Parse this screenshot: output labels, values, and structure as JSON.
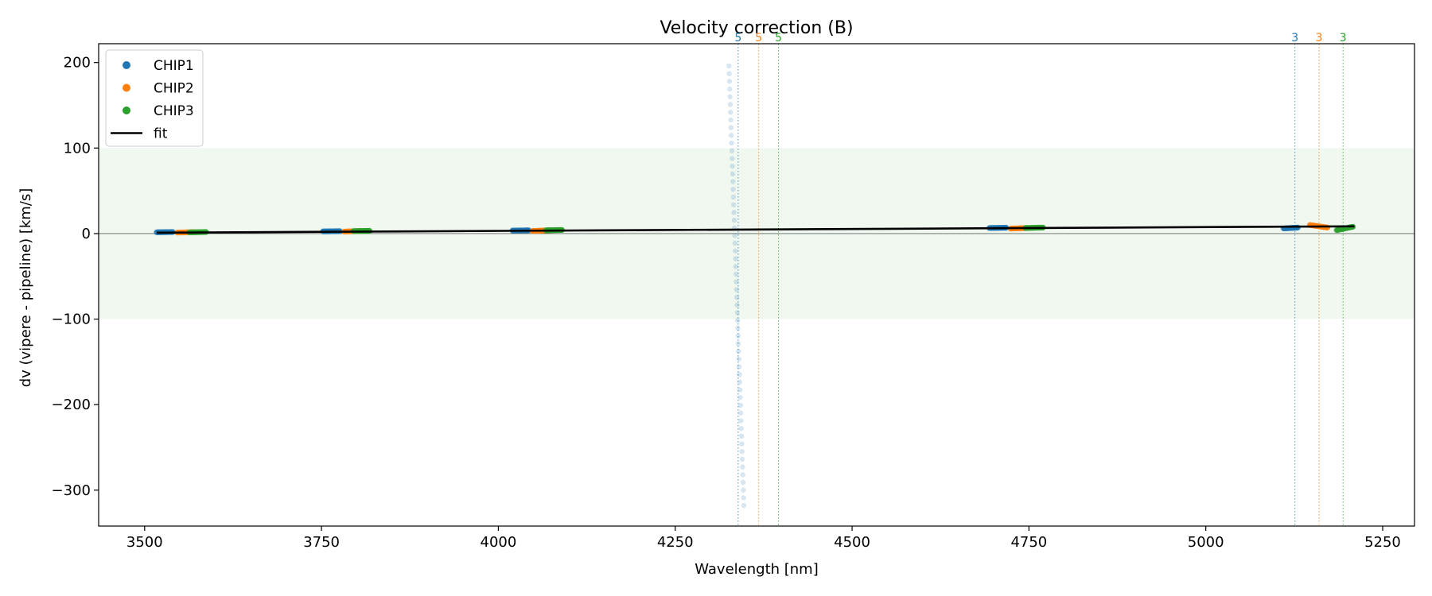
{
  "chart_data": {
    "type": "scatter",
    "title": "Velocity correction (B)",
    "xlabel": "Wavelength [nm]",
    "ylabel": "dv (vipere - pipeline) [km/s]",
    "xlim": [
      3435,
      5295
    ],
    "ylim": [
      -342,
      222
    ],
    "xticks": [
      3500,
      3750,
      4000,
      4250,
      4500,
      4750,
      5000,
      5250
    ],
    "yticks": [
      -300,
      -200,
      -100,
      0,
      100,
      200
    ],
    "tolerance_band": [
      -100,
      100
    ],
    "zero_line": 0,
    "legend": {
      "position": "top-left",
      "entries": [
        {
          "label": "CHIP1",
          "kind": "marker",
          "color": "#1f77b4"
        },
        {
          "label": "CHIP2",
          "kind": "marker",
          "color": "#ff7f0e"
        },
        {
          "label": "CHIP3",
          "kind": "marker",
          "color": "#2ca02c"
        },
        {
          "label": "fit",
          "kind": "line",
          "color": "#000000"
        }
      ]
    },
    "series": [
      {
        "name": "CHIP1",
        "color": "#1f77b4",
        "clusters": [
          {
            "x0": 3517,
            "x1": 3540,
            "y0": 1.5,
            "y1": 1.8
          },
          {
            "x0": 3752,
            "x1": 3776,
            "y0": 2.5,
            "y1": 2.8
          },
          {
            "x0": 4020,
            "x1": 4043,
            "y0": 3.5,
            "y1": 3.8
          },
          {
            "x0": 4694,
            "x1": 4718,
            "y0": 6.5,
            "y1": 6.8
          },
          {
            "x0": 5110,
            "x1": 5130,
            "y0": 6.0,
            "y1": 7.0
          }
        ]
      },
      {
        "name": "CHIP2",
        "color": "#ff7f0e",
        "clusters": [
          {
            "x0": 3546,
            "x1": 3570,
            "y0": 1.2,
            "y1": 1.6
          },
          {
            "x0": 3782,
            "x1": 3806,
            "y0": 2.3,
            "y1": 3.0
          },
          {
            "x0": 4048,
            "x1": 4073,
            "y0": 3.0,
            "y1": 3.8
          },
          {
            "x0": 4724,
            "x1": 4748,
            "y0": 5.8,
            "y1": 6.5
          },
          {
            "x0": 5147,
            "x1": 5172,
            "y0": 10.0,
            "y1": 7.0
          }
        ]
      },
      {
        "name": "CHIP3",
        "color": "#2ca02c",
        "clusters": [
          {
            "x0": 3563,
            "x1": 3587,
            "y0": 1.4,
            "y1": 1.8
          },
          {
            "x0": 3795,
            "x1": 3818,
            "y0": 2.8,
            "y1": 3.2
          },
          {
            "x0": 4067,
            "x1": 4090,
            "y0": 3.8,
            "y1": 4.2
          },
          {
            "x0": 4745,
            "x1": 4770,
            "y0": 6.5,
            "y1": 7.0
          },
          {
            "x0": 5185,
            "x1": 5208,
            "y0": 4.0,
            "y1": 8.0
          }
        ]
      }
    ],
    "outliers": {
      "series": "CHIP1",
      "color": "#1f77b4",
      "x_start": 4326,
      "x_end": 4347,
      "y_start": 196,
      "y_end": -318,
      "count": 58
    },
    "fit": {
      "x": [
        3517,
        5210
      ],
      "y": [
        1.0,
        8.5
      ],
      "color": "#000000"
    },
    "vlines": [
      {
        "x": 4339,
        "label": "5",
        "color": "#1f77b4"
      },
      {
        "x": 4368,
        "label": "5",
        "color": "#ff7f0e"
      },
      {
        "x": 4396,
        "label": "5",
        "color": "#2ca02c"
      },
      {
        "x": 5126,
        "label": "3",
        "color": "#1f77b4"
      },
      {
        "x": 5160,
        "label": "3",
        "color": "#ff7f0e"
      },
      {
        "x": 5194,
        "label": "3",
        "color": "#2ca02c"
      }
    ]
  }
}
